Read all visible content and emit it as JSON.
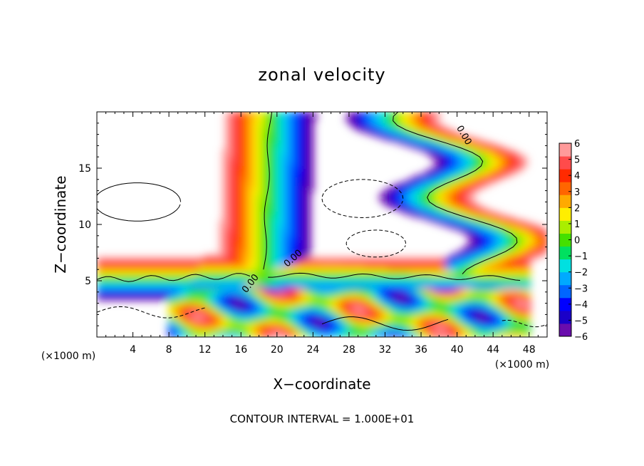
{
  "chart_data": {
    "type": "heatmap",
    "title": "zonal velocity",
    "xlabel": "X−coordinate",
    "ylabel": "Z−coordinate",
    "x_unit": "(×1000 m)",
    "y_unit": "(×1000 m)",
    "xlim": [
      0,
      50
    ],
    "ylim": [
      0,
      20
    ],
    "x_ticks": [
      "4",
      "8",
      "12",
      "16",
      "20",
      "24",
      "28",
      "32",
      "36",
      "40",
      "44",
      "48"
    ],
    "x_tick_values": [
      4,
      8,
      12,
      16,
      20,
      24,
      28,
      32,
      36,
      40,
      44,
      48
    ],
    "y_ticks": [
      "5",
      "10",
      "15"
    ],
    "y_tick_values": [
      5,
      10,
      15
    ],
    "colorbar": {
      "min": -6,
      "max": 6,
      "tick_labels": [
        "6",
        "5",
        "4",
        "3",
        "2",
        "1",
        "0",
        "−1",
        "−2",
        "−3",
        "−4",
        "−5",
        "−6"
      ],
      "tick_values": [
        6,
        5,
        4,
        3,
        2,
        1,
        0,
        -1,
        -2,
        -3,
        -4,
        -5,
        -6
      ],
      "colors": [
        "#6a0dad",
        "#1a00c8",
        "#0000ff",
        "#0066ff",
        "#00aaff",
        "#00e0e0",
        "#00e060",
        "#44e000",
        "#aaee00",
        "#ffee00",
        "#ffaa00",
        "#ff6600",
        "#ff2a00",
        "#ff4b4b",
        "#ff9a9a"
      ]
    },
    "contour_labels": [
      "0.00",
      "0.00",
      "0.00"
    ],
    "features": [
      {
        "name": "surface-layer",
        "x": [
          0,
          50
        ],
        "y": [
          4.5,
          6.5
        ]
      },
      {
        "name": "updraft-column",
        "x": [
          13,
          23
        ],
        "y": [
          5,
          20
        ]
      },
      {
        "name": "right-jet",
        "x": [
          35,
          50
        ],
        "y": [
          3,
          20
        ]
      }
    ]
  },
  "footer": "CONTOUR INTERVAL = 1.000E+01"
}
